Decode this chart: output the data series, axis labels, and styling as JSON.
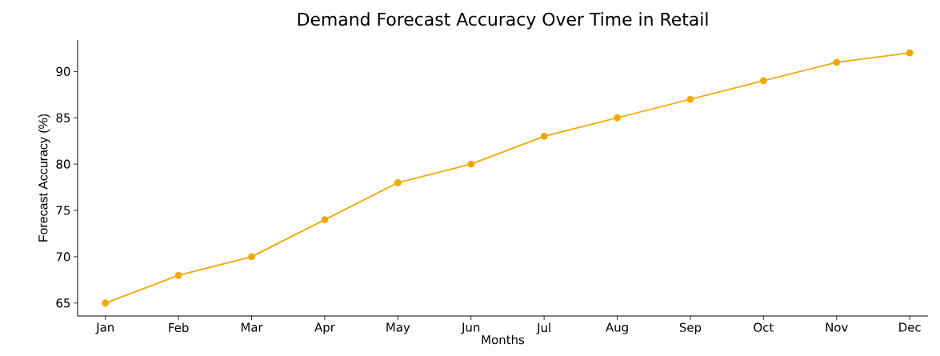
{
  "chart_data": {
    "type": "line",
    "title": "Demand Forecast Accuracy Over Time in Retail",
    "xlabel": "Months",
    "ylabel": "Forecast Accuracy (%)",
    "categories": [
      "Jan",
      "Feb",
      "Mar",
      "Apr",
      "May",
      "Jun",
      "Jul",
      "Aug",
      "Sep",
      "Oct",
      "Nov",
      "Dec"
    ],
    "values": [
      65,
      68,
      70,
      74,
      78,
      80,
      83,
      85,
      87,
      89,
      91,
      92
    ],
    "color": "#f5a700",
    "marker": "circle",
    "line_style": "solid",
    "grid": false,
    "ylim": [
      63.6,
      93.4
    ],
    "yticks": [
      65,
      70,
      75,
      80,
      85,
      90
    ]
  }
}
